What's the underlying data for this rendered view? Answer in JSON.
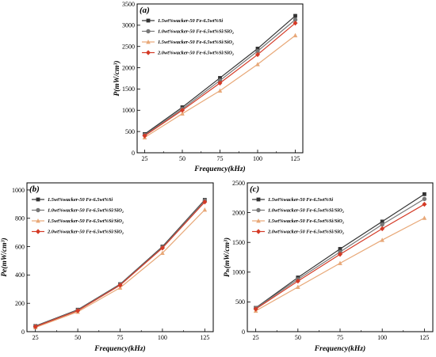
{
  "figure": {
    "colors": {
      "s1": "#333333",
      "s2": "#777777",
      "s3": "#e8a878",
      "s4": "#d43a26"
    }
  },
  "chart_data": [
    {
      "panel": "(a)",
      "type": "line",
      "xlabel": "Frequency(kHz)",
      "ylabel": "P(mW/cm³)",
      "x": [
        25,
        50,
        75,
        100,
        125
      ],
      "xticks": [
        "25",
        "50",
        "75",
        "100",
        "125"
      ],
      "xlim": [
        20,
        130
      ],
      "ylim": [
        0,
        3500
      ],
      "yticks": [
        "0",
        "500",
        "1000",
        "1500",
        "2000",
        "2500",
        "3000",
        "3500"
      ],
      "legend_position": "top-left",
      "grid": false,
      "series": [
        {
          "name": "1.5wt%wacker-50 Fe-6.5wt%Si",
          "color": "#333333",
          "marker": "square",
          "values": [
            440,
            1070,
            1760,
            2450,
            3220
          ]
        },
        {
          "name": "1.0wt%wacker-50 Fe-6.5wt%Si/SiO₂",
          "color": "#777777",
          "marker": "circle",
          "values": [
            420,
            1030,
            1700,
            2390,
            3130
          ]
        },
        {
          "name": "1.5wt%wacker-50 Fe-6.5wt%Si/SiO₂",
          "color": "#e8a878",
          "marker": "triangle",
          "values": [
            360,
            920,
            1460,
            2080,
            2760
          ]
        },
        {
          "name": "2.0wt%wacker-50 Fe-6.5wt%Si/SiO₂",
          "color": "#d43a26",
          "marker": "diamond",
          "values": [
            400,
            1000,
            1640,
            2310,
            3050
          ]
        }
      ]
    },
    {
      "panel": "(b)",
      "type": "line",
      "xlabel": "Frequency(kHz)",
      "ylabel": "Pe(mW/cm³)",
      "x": [
        25,
        50,
        75,
        100,
        125
      ],
      "xticks": [
        "25",
        "50",
        "75",
        "100",
        "125"
      ],
      "xlim": [
        20,
        130
      ],
      "ylim": [
        0,
        1050
      ],
      "yticks": [
        "0",
        "200",
        "400",
        "600",
        "800",
        "1000"
      ],
      "legend_position": "top-left",
      "grid": false,
      "series": [
        {
          "name": "1.5wt%wacker-50 Fe-6.5wt%Si",
          "color": "#333333",
          "marker": "square",
          "values": [
            40,
            155,
            335,
            600,
            930
          ]
        },
        {
          "name": "1.0wt%wacker-50 Fe-6.5wt%Si/SiO₂",
          "color": "#777777",
          "marker": "circle",
          "values": [
            38,
            152,
            332,
            595,
            925
          ]
        },
        {
          "name": "1.5wt%wacker-50 Fe-6.5wt%Si/SiO₂",
          "color": "#e8a878",
          "marker": "triangle",
          "values": [
            30,
            140,
            310,
            555,
            860
          ]
        },
        {
          "name": "2.0wt%wacker-50 Fe-6.5wt%Si/SiO₂",
          "color": "#d43a26",
          "marker": "diamond",
          "values": [
            35,
            148,
            328,
            590,
            915
          ]
        }
      ]
    },
    {
      "panel": "(c)",
      "type": "line",
      "xlabel": "Frequency(kHz)",
      "ylabel": "Pₕ(mW/cm³)",
      "x": [
        25,
        50,
        75,
        100,
        125
      ],
      "xticks": [
        "25",
        "50",
        "75",
        "100",
        "125"
      ],
      "xlim": [
        20,
        130
      ],
      "ylim": [
        0,
        2500
      ],
      "yticks": [
        "0",
        "500",
        "1000",
        "1500",
        "2000",
        "2500"
      ],
      "legend_position": "top-left",
      "grid": false,
      "series": [
        {
          "name": "1.5wt%wacker-50 Fe-6.5wt%Si",
          "color": "#333333",
          "marker": "square",
          "values": [
            400,
            910,
            1390,
            1850,
            2310
          ]
        },
        {
          "name": "1.0wt%wacker-50 Fe-6.5wt%Si/SiO₂",
          "color": "#777777",
          "marker": "circle",
          "values": [
            395,
            880,
            1340,
            1800,
            2230
          ]
        },
        {
          "name": "1.5wt%wacker-50 Fe-6.5wt%Si/SiO₂",
          "color": "#e8a878",
          "marker": "triangle",
          "values": [
            350,
            750,
            1150,
            1540,
            1910
          ]
        },
        {
          "name": "2.0wt%wacker-50 Fe-6.5wt%Si/SiO₂",
          "color": "#d43a26",
          "marker": "diamond",
          "values": [
            380,
            850,
            1300,
            1730,
            2140
          ]
        }
      ]
    }
  ]
}
